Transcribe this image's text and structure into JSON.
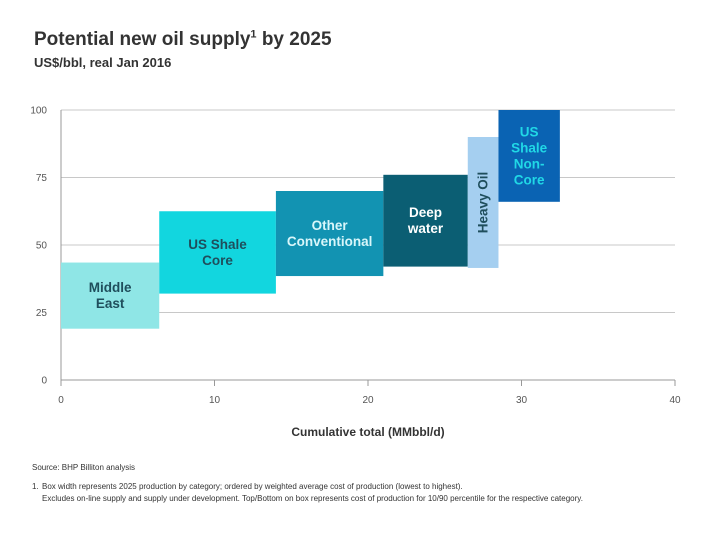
{
  "title_text": "Potential new oil supply",
  "title_sup": "1",
  "title_suffix": " by 2025",
  "subtitle": "US$/bbl, real Jan 2016",
  "source": "Source: BHP Billiton analysis",
  "footnote_number": "1.",
  "footnote_line1": "Box width represents 2025 production by category; ordered by weighted average cost of production (lowest to highest).",
  "footnote_line2": "Excludes on-line supply and supply under development. Top/Bottom on box represents cost of production for 10/90 percentile for the respective category.",
  "chart_data": {
    "type": "bar",
    "title": "Potential new oil supply by 2025",
    "xlabel": "Cumulative total (MMbbl/d)",
    "ylabel": "US$/bbl, real Jan 2016",
    "xlim": [
      0,
      40
    ],
    "ylim": [
      0,
      100
    ],
    "xticks": [
      0,
      10,
      20,
      30,
      40
    ],
    "yticks": [
      0,
      25,
      50,
      75,
      100
    ],
    "grid": "horizontal",
    "series": [
      {
        "name": "Middle East",
        "label_lines": [
          "Middle",
          "East"
        ],
        "x0": 0,
        "x1": 6.4,
        "low": 19,
        "high": 43.5,
        "color": "#8fe6e6",
        "text_color": "#1f4e5c",
        "orientation": "horizontal"
      },
      {
        "name": "US Shale Core",
        "label_lines": [
          "US Shale",
          "Core"
        ],
        "x0": 6.4,
        "x1": 14,
        "low": 32,
        "high": 62.5,
        "color": "#12d6df",
        "text_color": "#1f4e5c",
        "orientation": "horizontal"
      },
      {
        "name": "Other Conventional",
        "label_lines": [
          "Other",
          "Conventional"
        ],
        "x0": 14,
        "x1": 21,
        "low": 38.5,
        "high": 70,
        "color": "#1293b2",
        "text_color": "#d8f6fa",
        "orientation": "horizontal"
      },
      {
        "name": "Deep water",
        "label_lines": [
          "Deep",
          "water"
        ],
        "x0": 21,
        "x1": 26.5,
        "low": 42,
        "high": 76,
        "color": "#0b5e73",
        "text_color": "#ffffff",
        "orientation": "horizontal"
      },
      {
        "name": "Heavy Oil",
        "label_lines": [
          "Heavy Oil"
        ],
        "x0": 26.5,
        "x1": 28.5,
        "low": 41.5,
        "high": 90,
        "color": "#a5cff0",
        "text_color": "#1f4e5c",
        "orientation": "vertical"
      },
      {
        "name": "US Shale Non-Core",
        "label_lines": [
          "US",
          "Shale",
          "Non-",
          "Core"
        ],
        "x0": 28.5,
        "x1": 32.5,
        "low": 66,
        "high": 100,
        "color": "#0a63b3",
        "text_color": "#20d8e6",
        "orientation": "horizontal"
      }
    ]
  }
}
